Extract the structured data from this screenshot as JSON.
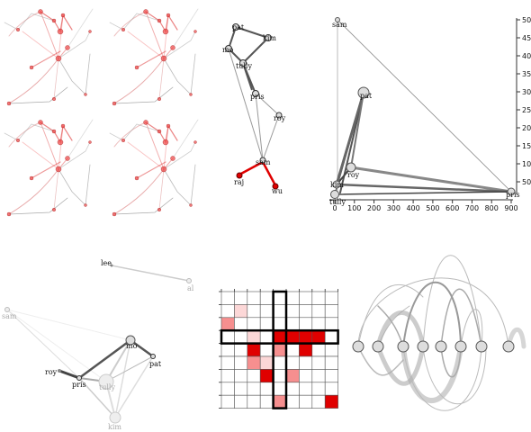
{
  "small_multiples": {
    "count": 4,
    "accent_color": "#e0202a"
  },
  "tree": {
    "labels": {
      "pat": "pat",
      "kim": "kim",
      "mo": "mo",
      "tully": "tully",
      "pris": "pris",
      "roy": "roy",
      "sam": "sam",
      "raj": "raj",
      "wu": "wu"
    },
    "highlight_color": "#e00000"
  },
  "scatter": {
    "labels": {
      "sam": "sam",
      "pat": "pat",
      "roy": "roy",
      "kim": "kim",
      "tully": "tully",
      "pris": "pris"
    },
    "y_ticks": [
      "500",
      "450",
      "400",
      "350",
      "300",
      "250",
      "200",
      "150",
      "100",
      "50"
    ],
    "x_ticks": [
      "0",
      "100",
      "200",
      "300",
      "400",
      "500",
      "600",
      "700",
      "800",
      "900"
    ]
  },
  "layout_graph": {
    "labels": {
      "lee": "lee",
      "al": "al",
      "sam": "sam",
      "mo": "mo",
      "pat": "pat",
      "roy": "roy",
      "pris": "pris",
      "tully": "tully",
      "kim": "kim"
    }
  },
  "matrix": {
    "rows": 9,
    "cols": 9,
    "cell_fills": [
      [
        0,
        0,
        0,
        0,
        0,
        0,
        0,
        0,
        0
      ],
      [
        0,
        1,
        0,
        0,
        0,
        0,
        0,
        0,
        0
      ],
      [
        2,
        0,
        0,
        0,
        0,
        0,
        0,
        0,
        0
      ],
      [
        0,
        0,
        1,
        0,
        3,
        3,
        3,
        3,
        0
      ],
      [
        0,
        0,
        3,
        0,
        2,
        0,
        3,
        0,
        0
      ],
      [
        0,
        0,
        2,
        1,
        0,
        0,
        0,
        0,
        0
      ],
      [
        0,
        0,
        0,
        3,
        0,
        2,
        0,
        0,
        0
      ],
      [
        0,
        0,
        0,
        0,
        0,
        0,
        0,
        0,
        0
      ],
      [
        0,
        0,
        0,
        0,
        2,
        0,
        0,
        0,
        3
      ]
    ],
    "accent_color": "#e00000"
  },
  "arc_diagram": {
    "node_count": 9
  }
}
